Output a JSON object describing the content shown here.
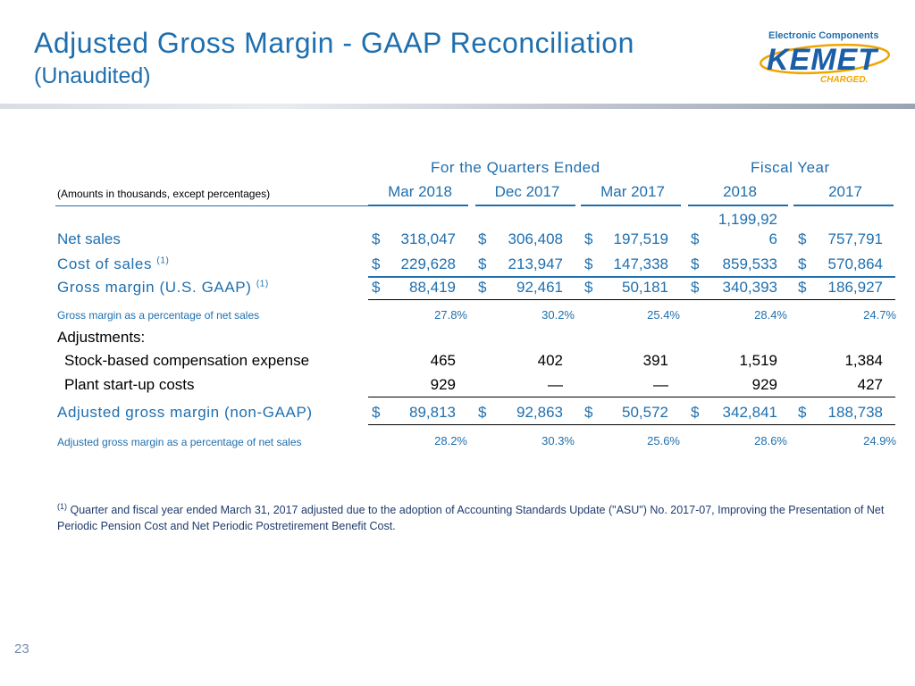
{
  "header": {
    "title": "Adjusted Gross Margin - GAAP Reconciliation",
    "subtitle": "(Unaudited)"
  },
  "logo": {
    "top_text": "Electronic Components",
    "main_text": "KEMET",
    "bottom_text": "CHARGED."
  },
  "table": {
    "group_quarters": "For the Quarters Ended",
    "group_fiscal": "Fiscal Year",
    "amounts_note": "(Amounts in thousands, except percentages)",
    "columns": [
      "Mar 2018",
      "Dec 2017",
      "Mar 2017",
      "2018",
      "2017"
    ],
    "rows": {
      "net_sales": {
        "label": "Net sales",
        "values": [
          "318,047",
          "306,408",
          "197,519",
          "1,199,92",
          "757,791"
        ],
        "fy2018_wrap": "6"
      },
      "cost_of_sales": {
        "label": "Cost of sales",
        "footnote": "(1)",
        "values": [
          "229,628",
          "213,947",
          "147,338",
          "859,533",
          "570,864"
        ]
      },
      "gross_margin": {
        "label": "Gross margin (U.S. GAAP)",
        "footnote": "(1)",
        "values": [
          "88,419",
          "92,461",
          "50,181",
          "340,393",
          "186,927"
        ]
      },
      "gross_margin_pct": {
        "label": "Gross margin as a percentage of net sales",
        "values": [
          "27.8%",
          "30.2%",
          "25.4%",
          "28.4%",
          "24.7%"
        ]
      },
      "adjustments": {
        "label": "Adjustments:"
      },
      "stock_comp": {
        "label": "Stock-based compensation expense",
        "values": [
          "465",
          "402",
          "391",
          "1,519",
          "1,384"
        ]
      },
      "plant_startup": {
        "label": "Plant start-up costs",
        "values": [
          "929",
          "—",
          "—",
          "929",
          "427"
        ]
      },
      "adj_gross_margin": {
        "label": "Adjusted gross margin (non-GAAP)",
        "values": [
          "89,813",
          "92,863",
          "50,572",
          "342,841",
          "188,738"
        ]
      },
      "adj_gross_margin_pct": {
        "label": "Adjusted gross margin as a percentage of net sales",
        "values": [
          "28.2%",
          "30.3%",
          "25.6%",
          "28.6%",
          "24.9%"
        ]
      }
    },
    "currency_symbol": "$"
  },
  "footnote": {
    "marker": "(1)",
    "text": "Quarter and fiscal year ended March 31, 2017 adjusted due to the adoption of Accounting Standards Update (\"ASU\") No. 2017-07, Improving the Presentation of Net Periodic Pension Cost and Net Periodic Postretirement Benefit Cost."
  },
  "page_number": "23",
  "colors": {
    "accent": "#1f6fae",
    "logo_blue": "#1a5ea8",
    "logo_orange": "#f0a500"
  }
}
